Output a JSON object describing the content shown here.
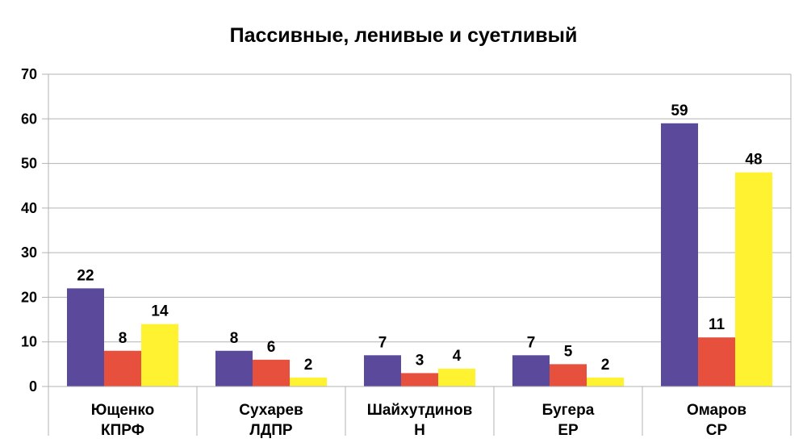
{
  "chart_data": {
    "type": "bar",
    "title": "Пассивные, ленивые и суетливый",
    "xlabel": "",
    "ylabel": "",
    "ylim": [
      0,
      70
    ],
    "yticks": [
      0,
      10,
      20,
      30,
      40,
      50,
      60,
      70
    ],
    "grid": true,
    "legend": "none",
    "categories": [
      [
        "Ющенко",
        "КПРФ"
      ],
      [
        "Сухарев",
        "ЛДПР"
      ],
      [
        "Шайхутдинов",
        "Н"
      ],
      [
        "Бугера",
        "ЕР"
      ],
      [
        "Омаров",
        "СР"
      ]
    ],
    "series": [
      {
        "color": "#5b4a9b",
        "values": [
          22,
          8,
          7,
          7,
          59
        ]
      },
      {
        "color": "#e8503e",
        "values": [
          8,
          6,
          3,
          5,
          11
        ]
      },
      {
        "color": "#fff230",
        "values": [
          14,
          2,
          4,
          2,
          48
        ]
      }
    ]
  }
}
